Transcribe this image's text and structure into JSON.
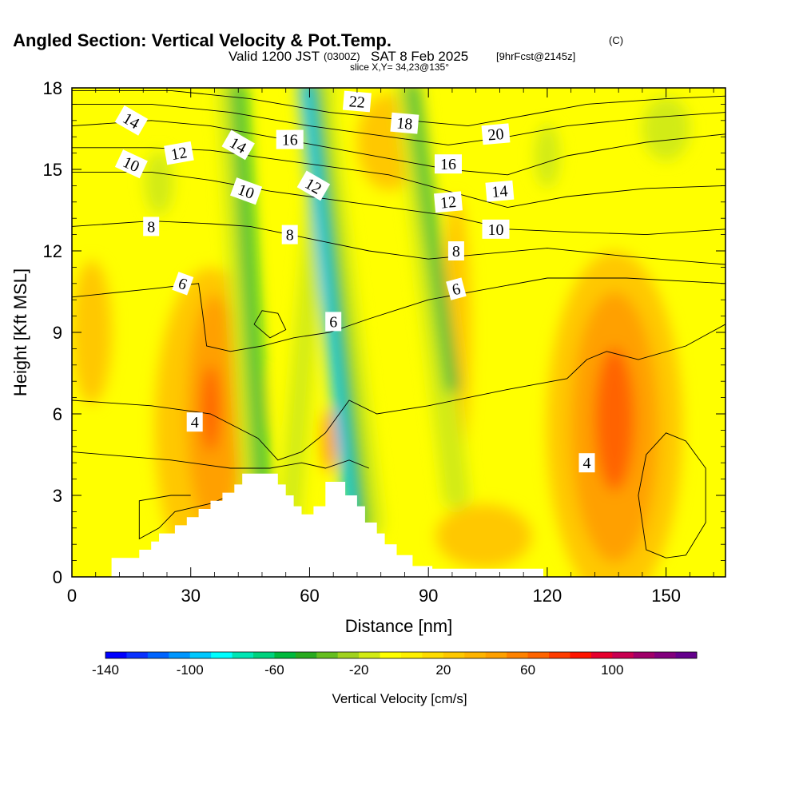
{
  "title": {
    "main": "Angled Section: Vertical Velocity & Pot.Temp.",
    "copyright": "(C)",
    "valid_a": "Valid 1200 JST",
    "valid_utc": "(0300Z)",
    "valid_b": "SAT 8 Feb 2025",
    "forecast": "[9hrFcst@2145z]",
    "slice": "slice X,Y= 34,23@135°"
  },
  "colorbar": {
    "label": "Vertical Velocity [cm/s]",
    "tick_labels": [
      "-140",
      "-100",
      "-60",
      "-20",
      "20",
      "60",
      "100"
    ],
    "tick_values": [
      -140,
      -100,
      -60,
      -20,
      20,
      60,
      100
    ],
    "range": [
      -140,
      140
    ],
    "colors": [
      "#0000ff",
      "#0a32ff",
      "#0064ff",
      "#0096ff",
      "#00c8ff",
      "#00ffff",
      "#00e6b4",
      "#00d27d",
      "#00b93c",
      "#28aa1e",
      "#64be1e",
      "#a0d21e",
      "#d2eb14",
      "#ffff00",
      "#fff000",
      "#ffdc00",
      "#ffc800",
      "#ffb400",
      "#ffa000",
      "#ff8200",
      "#ff6400",
      "#ff3c00",
      "#ff1400",
      "#e6002d",
      "#c80050",
      "#a00069",
      "#82007d",
      "#64008c"
    ]
  },
  "chart_data": {
    "type": "heatmap",
    "xlabel": "Distance [nm]",
    "ylabel": "Height [Kft MSL]",
    "xlim": [
      0,
      165
    ],
    "ylim": [
      0,
      18
    ],
    "x_ticks": [
      0,
      30,
      60,
      90,
      120,
      150
    ],
    "y_ticks": [
      0,
      3,
      6,
      9,
      12,
      15,
      18
    ],
    "field": "Vertical Velocity [cm/s]",
    "features": [
      {
        "kind": "updraft",
        "x": 35,
        "y": 6,
        "value": 60
      },
      {
        "kind": "updraft",
        "x": 137,
        "y": 5.5,
        "value": 60
      },
      {
        "kind": "downdraft",
        "x": 70,
        "y": 10,
        "value": -100
      },
      {
        "kind": "downdraft",
        "x": 50,
        "y": 12,
        "value": -60
      },
      {
        "kind": "downdraft",
        "x": 95,
        "y": 12,
        "value": -60
      }
    ],
    "terrain": [
      [
        10,
        0.4
      ],
      [
        10,
        0.7
      ],
      [
        17,
        0.7
      ],
      [
        17,
        1.0
      ],
      [
        20,
        1.0
      ],
      [
        20,
        1.3
      ],
      [
        22,
        1.3
      ],
      [
        22,
        1.6
      ],
      [
        26,
        1.6
      ],
      [
        26,
        1.9
      ],
      [
        29,
        1.9
      ],
      [
        29,
        2.2
      ],
      [
        32,
        2.2
      ],
      [
        32,
        2.5
      ],
      [
        35,
        2.5
      ],
      [
        35,
        2.8
      ],
      [
        38,
        2.8
      ],
      [
        38,
        3.1
      ],
      [
        41,
        3.1
      ],
      [
        41,
        3.4
      ],
      [
        43,
        3.4
      ],
      [
        43,
        3.8
      ],
      [
        52,
        3.8
      ],
      [
        52,
        3.4
      ],
      [
        54,
        3.4
      ],
      [
        54,
        3.0
      ],
      [
        56,
        3.0
      ],
      [
        56,
        2.6
      ],
      [
        58,
        2.6
      ],
      [
        58,
        2.3
      ],
      [
        61,
        2.3
      ],
      [
        61,
        2.6
      ],
      [
        64,
        2.6
      ],
      [
        64,
        3.5
      ],
      [
        69,
        3.5
      ],
      [
        69,
        3.0
      ],
      [
        72,
        3.0
      ],
      [
        72,
        2.6
      ],
      [
        74,
        2.6
      ],
      [
        74,
        2.0
      ],
      [
        77,
        2.0
      ],
      [
        77,
        1.6
      ],
      [
        79,
        1.6
      ],
      [
        79,
        1.2
      ],
      [
        82,
        1.2
      ],
      [
        82,
        0.8
      ],
      [
        86,
        0.8
      ],
      [
        86,
        0.4
      ],
      [
        91,
        0.4
      ],
      [
        91,
        0.3
      ],
      [
        119,
        0.3
      ],
      [
        119,
        0.2
      ]
    ],
    "contours": [
      {
        "theta": 4,
        "points": [
          [
            0,
            6.5
          ],
          [
            20,
            6.3
          ],
          [
            35,
            6.0
          ],
          [
            47,
            5.1
          ],
          [
            52,
            4.3
          ],
          [
            58,
            4.6
          ],
          [
            64,
            5.3
          ],
          [
            70,
            6.5
          ],
          [
            77,
            6.0
          ],
          [
            90,
            6.3
          ],
          [
            110,
            6.9
          ],
          [
            125,
            7.3
          ],
          [
            130,
            8.0
          ],
          [
            135,
            8.3
          ],
          [
            143,
            8.0
          ],
          [
            155,
            8.5
          ],
          [
            165,
            9.3
          ]
        ]
      },
      {
        "theta": 4,
        "points": [
          [
            0,
            4.6
          ],
          [
            25,
            4.3
          ],
          [
            40,
            4.0
          ],
          [
            50,
            4.0
          ],
          [
            58,
            4.2
          ],
          [
            64,
            4.0
          ],
          [
            70,
            4.3
          ],
          [
            75,
            4.0
          ]
        ]
      },
      {
        "theta": 4,
        "points": [
          [
            30,
            3.0
          ],
          [
            25,
            3.0
          ],
          [
            17,
            2.8
          ],
          [
            17,
            1.4
          ],
          [
            22,
            1.8
          ],
          [
            26,
            2.4
          ],
          [
            35,
            2.7
          ],
          [
            40,
            3.0
          ]
        ]
      },
      {
        "theta": 4,
        "points": [
          [
            150,
            0.7
          ],
          [
            145,
            1.0
          ],
          [
            143,
            3.0
          ],
          [
            145,
            4.5
          ],
          [
            150,
            5.3
          ],
          [
            155,
            5.0
          ],
          [
            160,
            4.0
          ],
          [
            160,
            2.0
          ],
          [
            155,
            0.8
          ],
          [
            150,
            0.7
          ]
        ]
      },
      {
        "theta": 6,
        "points": [
          [
            0,
            10.3
          ],
          [
            20,
            10.6
          ],
          [
            32,
            10.8
          ],
          [
            33,
            9.7
          ],
          [
            34,
            8.5
          ],
          [
            40,
            8.3
          ],
          [
            48,
            8.5
          ],
          [
            56,
            8.8
          ],
          [
            65,
            9.0
          ],
          [
            75,
            9.5
          ],
          [
            90,
            10.2
          ],
          [
            105,
            10.6
          ],
          [
            120,
            11.0
          ],
          [
            140,
            11.0
          ],
          [
            165,
            10.8
          ]
        ]
      },
      {
        "theta": 6,
        "points": [
          [
            46,
            9.3
          ],
          [
            48,
            9.8
          ],
          [
            52,
            9.7
          ],
          [
            54,
            9.1
          ],
          [
            50,
            8.8
          ],
          [
            46,
            9.3
          ]
        ]
      },
      {
        "theta": 8,
        "points": [
          [
            0,
            12.9
          ],
          [
            20,
            13.1
          ],
          [
            35,
            13.0
          ],
          [
            45,
            12.9
          ],
          [
            55,
            12.6
          ],
          [
            65,
            12.3
          ],
          [
            75,
            12.0
          ],
          [
            90,
            11.7
          ],
          [
            105,
            11.9
          ],
          [
            120,
            12.1
          ],
          [
            140,
            11.8
          ],
          [
            165,
            11.5
          ]
        ]
      },
      {
        "theta": 10,
        "points": [
          [
            0,
            14.9
          ],
          [
            20,
            14.9
          ],
          [
            35,
            14.6
          ],
          [
            50,
            14.2
          ],
          [
            65,
            13.9
          ],
          [
            80,
            13.6
          ],
          [
            95,
            13.3
          ],
          [
            110,
            12.8
          ],
          [
            125,
            12.7
          ],
          [
            145,
            12.6
          ],
          [
            165,
            12.8
          ]
        ]
      },
      {
        "theta": 12,
        "points": [
          [
            0,
            15.8
          ],
          [
            20,
            15.8
          ],
          [
            35,
            15.7
          ],
          [
            50,
            15.4
          ],
          [
            65,
            15.1
          ],
          [
            80,
            14.8
          ],
          [
            95,
            14.2
          ],
          [
            110,
            13.6
          ],
          [
            125,
            14.0
          ],
          [
            145,
            14.3
          ],
          [
            165,
            14.4
          ]
        ]
      },
      {
        "theta": 14,
        "points": [
          [
            0,
            16.6
          ],
          [
            20,
            16.8
          ],
          [
            35,
            16.6
          ],
          [
            50,
            16.2
          ],
          [
            65,
            15.8
          ],
          [
            80,
            15.4
          ],
          [
            95,
            15.0
          ],
          [
            110,
            14.8
          ],
          [
            125,
            15.5
          ],
          [
            145,
            16.0
          ],
          [
            165,
            16.3
          ]
        ]
      },
      {
        "theta": 16,
        "points": [
          [
            0,
            17.4
          ],
          [
            20,
            17.4
          ],
          [
            40,
            17.1
          ],
          [
            60,
            16.6
          ],
          [
            80,
            16.2
          ],
          [
            95,
            15.9
          ],
          [
            110,
            16.2
          ],
          [
            125,
            16.6
          ],
          [
            145,
            16.9
          ],
          [
            165,
            17.1
          ]
        ]
      },
      {
        "theta": 18,
        "points": [
          [
            0,
            17.9
          ],
          [
            25,
            17.9
          ],
          [
            45,
            17.6
          ],
          [
            65,
            17.1
          ],
          [
            85,
            16.8
          ],
          [
            100,
            16.6
          ],
          [
            115,
            17.0
          ],
          [
            130,
            17.4
          ],
          [
            150,
            17.6
          ],
          [
            165,
            17.7
          ]
        ]
      }
    ],
    "contour_labels": [
      {
        "text": "14",
        "x": 15,
        "y": 16.8,
        "angle": 30
      },
      {
        "text": "12",
        "x": 27,
        "y": 15.6,
        "angle": -10
      },
      {
        "text": "10",
        "x": 15,
        "y": 15.2,
        "angle": 25
      },
      {
        "text": "8",
        "x": 20,
        "y": 12.9,
        "angle": 0
      },
      {
        "text": "6",
        "x": 28,
        "y": 10.8,
        "angle": 20
      },
      {
        "text": "4",
        "x": 31,
        "y": 5.7,
        "angle": 0
      },
      {
        "text": "14",
        "x": 42,
        "y": 15.9,
        "angle": 30
      },
      {
        "text": "10",
        "x": 44,
        "y": 14.2,
        "angle": 20
      },
      {
        "text": "16",
        "x": 55,
        "y": 16.1,
        "angle": 0
      },
      {
        "text": "8",
        "x": 55,
        "y": 12.6,
        "angle": 0
      },
      {
        "text": "12",
        "x": 61,
        "y": 14.4,
        "angle": 30
      },
      {
        "text": "22",
        "x": 72,
        "y": 17.5,
        "angle": 5
      },
      {
        "text": "6",
        "x": 66,
        "y": 9.4,
        "angle": 0
      },
      {
        "text": "18",
        "x": 84,
        "y": 16.7,
        "angle": 5
      },
      {
        "text": "16",
        "x": 95,
        "y": 15.2,
        "angle": 0
      },
      {
        "text": "12",
        "x": 95,
        "y": 13.8,
        "angle": -5
      },
      {
        "text": "8",
        "x": 97,
        "y": 12.0,
        "angle": 0
      },
      {
        "text": "6",
        "x": 97,
        "y": 10.6,
        "angle": -15
      },
      {
        "text": "20",
        "x": 107,
        "y": 16.3,
        "angle": -5
      },
      {
        "text": "14",
        "x": 108,
        "y": 14.2,
        "angle": -5
      },
      {
        "text": "10",
        "x": 107,
        "y": 12.8,
        "angle": 0
      },
      {
        "text": "4",
        "x": 130,
        "y": 4.2,
        "angle": 0
      }
    ]
  }
}
